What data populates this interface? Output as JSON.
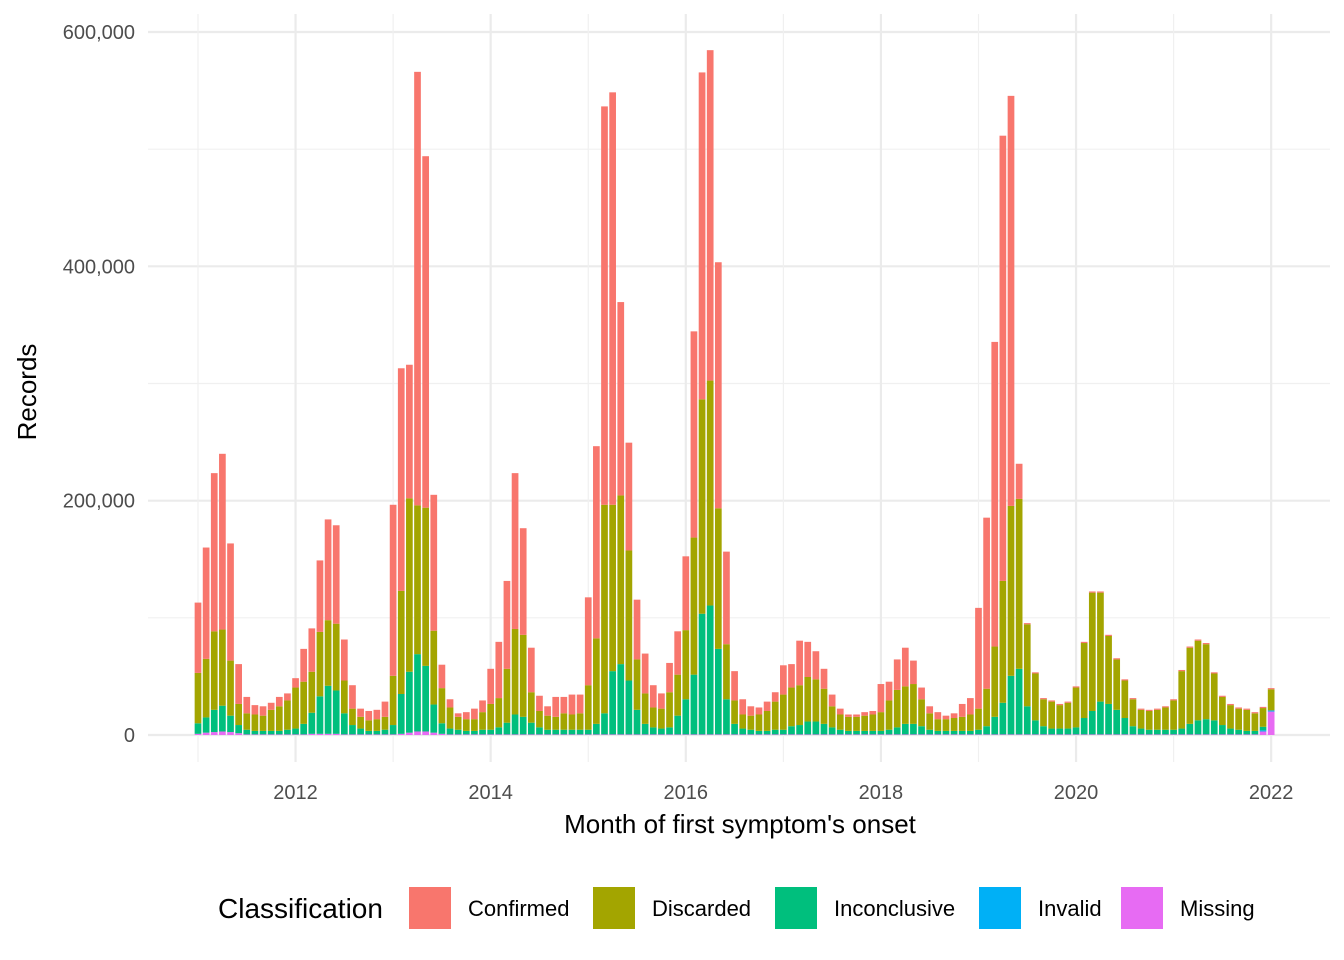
{
  "chart_data": {
    "type": "bar",
    "stacked": true,
    "title": "",
    "xlabel": "Month of first symptom's onset",
    "ylabel": "Records",
    "x_start": "2011-01",
    "x_end": "2022-01",
    "x_ticks": [
      "2012",
      "2014",
      "2016",
      "2018",
      "2020",
      "2022"
    ],
    "ylim": [
      0,
      600000
    ],
    "y_ticks": [
      "0",
      "200,000",
      "400,000",
      "600,000"
    ],
    "grid": true,
    "legend": {
      "title": "Classification",
      "position": "bottom",
      "entries": [
        "Confirmed",
        "Discarded",
        "Inconclusive",
        "Invalid",
        "Missing"
      ]
    },
    "colors": {
      "Confirmed": "#F8766D",
      "Discarded": "#A3A500",
      "Inconclusive": "#00BF7D",
      "Invalid": "#00B0F6",
      "Missing": "#E76BF3"
    },
    "months": [
      "2011-01",
      "2011-02",
      "2011-03",
      "2011-04",
      "2011-05",
      "2011-06",
      "2011-07",
      "2011-08",
      "2011-09",
      "2011-10",
      "2011-11",
      "2011-12",
      "2012-01",
      "2012-02",
      "2012-03",
      "2012-04",
      "2012-05",
      "2012-06",
      "2012-07",
      "2012-08",
      "2012-09",
      "2012-10",
      "2012-11",
      "2012-12",
      "2013-01",
      "2013-02",
      "2013-03",
      "2013-04",
      "2013-05",
      "2013-06",
      "2013-07",
      "2013-08",
      "2013-09",
      "2013-10",
      "2013-11",
      "2013-12",
      "2014-01",
      "2014-02",
      "2014-03",
      "2014-04",
      "2014-05",
      "2014-06",
      "2014-07",
      "2014-08",
      "2014-09",
      "2014-10",
      "2014-11",
      "2014-12",
      "2015-01",
      "2015-02",
      "2015-03",
      "2015-04",
      "2015-05",
      "2015-06",
      "2015-07",
      "2015-08",
      "2015-09",
      "2015-10",
      "2015-11",
      "2015-12",
      "2016-01",
      "2016-02",
      "2016-03",
      "2016-04",
      "2016-05",
      "2016-06",
      "2016-07",
      "2016-08",
      "2016-09",
      "2016-10",
      "2016-11",
      "2016-12",
      "2017-01",
      "2017-02",
      "2017-03",
      "2017-04",
      "2017-05",
      "2017-06",
      "2017-07",
      "2017-08",
      "2017-09",
      "2017-10",
      "2017-11",
      "2017-12",
      "2018-01",
      "2018-02",
      "2018-03",
      "2018-04",
      "2018-05",
      "2018-06",
      "2018-07",
      "2018-08",
      "2018-09",
      "2018-10",
      "2018-11",
      "2018-12",
      "2019-01",
      "2019-02",
      "2019-03",
      "2019-04",
      "2019-05",
      "2019-06",
      "2019-07",
      "2019-08",
      "2019-09",
      "2019-10",
      "2019-11",
      "2019-12",
      "2020-01",
      "2020-02",
      "2020-03",
      "2020-04",
      "2020-05",
      "2020-06",
      "2020-07",
      "2020-08",
      "2020-09",
      "2020-10",
      "2020-11",
      "2020-12",
      "2021-01",
      "2021-02",
      "2021-03",
      "2021-04",
      "2021-05",
      "2021-06",
      "2021-07",
      "2021-08",
      "2021-09",
      "2021-10",
      "2021-11",
      "2021-12",
      "2022-01"
    ],
    "series": [
      {
        "name": "Missing",
        "values": [
          1000,
          2000,
          2500,
          3000,
          2500,
          1500,
          500,
          500,
          500,
          500,
          500,
          500,
          500,
          500,
          1000,
          1000,
          1000,
          1000,
          500,
          500,
          500,
          500,
          500,
          500,
          500,
          1000,
          2000,
          3000,
          3000,
          2000,
          1000,
          500,
          500,
          500,
          500,
          500,
          500,
          500,
          500,
          500,
          500,
          500,
          500,
          500,
          500,
          500,
          500,
          500,
          500,
          500,
          500,
          500,
          500,
          500,
          500,
          500,
          500,
          500,
          500,
          500,
          500,
          500,
          500,
          500,
          500,
          500,
          500,
          500,
          500,
          500,
          500,
          500,
          500,
          500,
          500,
          500,
          500,
          500,
          500,
          500,
          500,
          500,
          500,
          500,
          500,
          500,
          500,
          500,
          500,
          500,
          500,
          500,
          500,
          500,
          500,
          500,
          500,
          500,
          500,
          500,
          500,
          500,
          500,
          500,
          500,
          500,
          500,
          500,
          500,
          500,
          500,
          500,
          500,
          500,
          500,
          500,
          500,
          500,
          500,
          500,
          500,
          500,
          500,
          500,
          500,
          500,
          500,
          500,
          500,
          500,
          500,
          3000,
          20000
        ]
      },
      {
        "name": "Invalid",
        "values": [
          0,
          0,
          0,
          0,
          0,
          0,
          0,
          0,
          0,
          0,
          0,
          0,
          0,
          0,
          0,
          0,
          0,
          0,
          0,
          0,
          0,
          0,
          0,
          0,
          0,
          0,
          0,
          0,
          0,
          0,
          0,
          0,
          0,
          0,
          0,
          0,
          0,
          0,
          0,
          0,
          0,
          0,
          0,
          0,
          0,
          0,
          0,
          0,
          0,
          0,
          0,
          0,
          0,
          0,
          0,
          0,
          0,
          0,
          0,
          0,
          0,
          0,
          0,
          0,
          0,
          0,
          0,
          0,
          0,
          0,
          0,
          0,
          0,
          0,
          0,
          0,
          0,
          0,
          0,
          0,
          0,
          0,
          0,
          0,
          0,
          0,
          0,
          0,
          0,
          0,
          0,
          0,
          0,
          0,
          0,
          0,
          0,
          0,
          0,
          0,
          0,
          0,
          0,
          0,
          0,
          0,
          0,
          0,
          0,
          0,
          0,
          0,
          0,
          0,
          0,
          0,
          0,
          0,
          0,
          0,
          0,
          0,
          0,
          0,
          0,
          0,
          0,
          0,
          0,
          0,
          0,
          1000,
          1000
        ]
      },
      {
        "name": "Inconclusive",
        "values": [
          9000,
          13000,
          19000,
          22000,
          14000,
          7000,
          4000,
          3000,
          3000,
          3000,
          3000,
          4000,
          5000,
          9000,
          18000,
          32000,
          41000,
          37000,
          18000,
          8000,
          5000,
          3000,
          3000,
          4000,
          8000,
          34000,
          52000,
          66000,
          56000,
          24000,
          9000,
          5000,
          4000,
          3000,
          3000,
          4000,
          4000,
          6000,
          10000,
          17000,
          15000,
          10000,
          6000,
          4000,
          4000,
          4000,
          4000,
          4000,
          4000,
          9000,
          18000,
          54000,
          60000,
          46000,
          21000,
          9000,
          6000,
          5000,
          6000,
          16000,
          30000,
          51000,
          103000,
          110000,
          73000,
          30000,
          9000,
          5000,
          4000,
          3000,
          3000,
          4000,
          4000,
          7000,
          8000,
          11000,
          11000,
          9000,
          6000,
          4000,
          3000,
          3000,
          3000,
          3000,
          3000,
          4000,
          6000,
          9000,
          9000,
          7000,
          4000,
          3000,
          3000,
          3000,
          3000,
          3000,
          4000,
          7000,
          15000,
          27000,
          50000,
          56000,
          24000,
          12000,
          7000,
          5000,
          5000,
          5000,
          6000,
          14000,
          20000,
          28000,
          26000,
          21000,
          14000,
          7000,
          5000,
          4000,
          4000,
          4000,
          4000,
          5000,
          9000,
          12000,
          13000,
          12000,
          8000,
          5000,
          4000,
          3000,
          3000,
          3000,
          0
        ]
      },
      {
        "name": "Discarded",
        "values": [
          43000,
          50000,
          67000,
          65000,
          47000,
          18000,
          14000,
          14000,
          13000,
          18000,
          21000,
          25000,
          35000,
          36000,
          35000,
          55000,
          56000,
          57000,
          28000,
          14000,
          10000,
          9000,
          10000,
          11000,
          42000,
          88000,
          148000,
          127000,
          135000,
          63000,
          30000,
          18000,
          11000,
          10000,
          10000,
          15000,
          22000,
          25000,
          46000,
          73000,
          70000,
          26000,
          14000,
          12000,
          11000,
          14000,
          13000,
          14000,
          38000,
          73000,
          178000,
          142000,
          144000,
          111000,
          43000,
          26000,
          17000,
          17000,
          30000,
          35000,
          59000,
          117000,
          183000,
          192000,
          120000,
          47000,
          20000,
          12000,
          12000,
          14000,
          17000,
          24000,
          30000,
          33000,
          34000,
          38000,
          36000,
          30000,
          18000,
          13000,
          12000,
          12000,
          13000,
          14000,
          16000,
          25000,
          32000,
          32000,
          34000,
          23000,
          14000,
          10000,
          10000,
          11000,
          12000,
          14000,
          18000,
          32000,
          60000,
          104000,
          145000,
          145000,
          70000,
          40000,
          23000,
          23000,
          20000,
          22000,
          34000,
          64000,
          101000,
          93000,
          58000,
          43000,
          32000,
          23000,
          16000,
          16000,
          17000,
          19000,
          25000,
          49000,
          65000,
          68000,
          64000,
          40000,
          24000,
          20000,
          18000,
          18000,
          15000,
          16000,
          18000
        ]
      },
      {
        "name": "Confirmed",
        "values": [
          60000,
          95000,
          135000,
          150000,
          100000,
          34000,
          14000,
          8000,
          8000,
          6000,
          8000,
          6000,
          8000,
          28000,
          37000,
          61000,
          86000,
          84000,
          35000,
          20000,
          7000,
          8000,
          8000,
          13000,
          146000,
          190000,
          114000,
          370000,
          300000,
          116000,
          20000,
          7000,
          3000,
          6000,
          9000,
          10000,
          30000,
          48000,
          75000,
          133000,
          91000,
          38000,
          13000,
          8000,
          17000,
          14000,
          17000,
          16000,
          75000,
          164000,
          340000,
          352000,
          165000,
          92000,
          51000,
          34000,
          19000,
          13000,
          25000,
          37000,
          63000,
          176000,
          279000,
          282000,
          210000,
          79000,
          25000,
          13000,
          8000,
          6000,
          8000,
          8000,
          25000,
          20000,
          38000,
          30000,
          24000,
          17000,
          10000,
          5000,
          2000,
          2000,
          3000,
          3000,
          24000,
          16000,
          26000,
          33000,
          20000,
          10000,
          6000,
          6000,
          3000,
          4000,
          11000,
          14000,
          86000,
          146000,
          260000,
          380000,
          350000,
          30000,
          1000,
          1000,
          1000,
          1000,
          1000,
          1000,
          1000,
          1000,
          1000,
          1000,
          1000,
          1000,
          1000,
          1000,
          1000,
          1000,
          1000,
          1000,
          1000,
          1000,
          1000,
          1000,
          1000,
          1000,
          1000,
          1000,
          1000,
          1000,
          1000,
          1000,
          1000
        ]
      }
    ]
  }
}
